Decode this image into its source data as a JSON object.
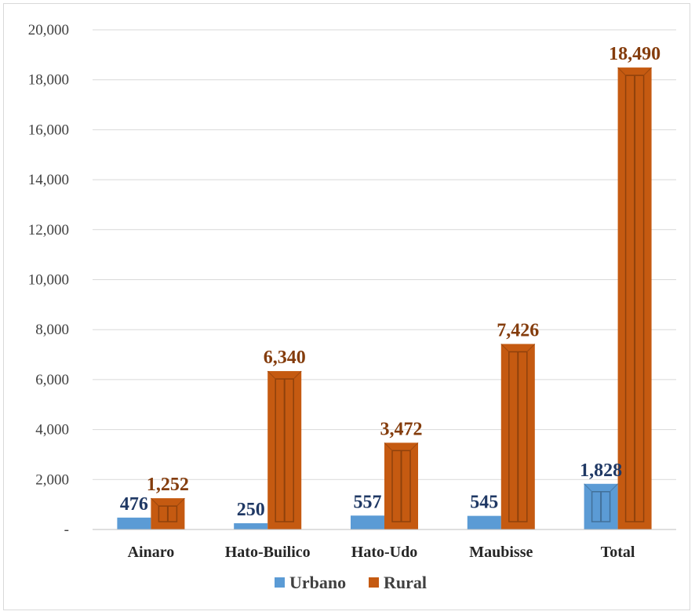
{
  "chart_data": {
    "type": "bar",
    "title": "",
    "xlabel": "",
    "ylabel": "",
    "categories": [
      "Ainaro",
      "Hato-Builico",
      "Hato-Udo",
      "Maubisse",
      "Total"
    ],
    "series": [
      {
        "name": "Urbano",
        "values": [
          476,
          250,
          557,
          545,
          1828
        ],
        "labels": [
          "476",
          "250",
          "557",
          "545",
          "1,828"
        ],
        "color": "#5b9bd5",
        "label_color": "#1f3864"
      },
      {
        "name": "Rural",
        "values": [
          1252,
          6340,
          3472,
          7426,
          18490
        ],
        "labels": [
          "1,252",
          "6,340",
          "3,472",
          "7,426",
          "18,490"
        ],
        "color": "#c55a11",
        "label_color": "#843c0c"
      }
    ],
    "ylim": [
      0,
      20000
    ],
    "yticks": [
      0,
      2000,
      4000,
      6000,
      8000,
      10000,
      12000,
      14000,
      16000,
      18000,
      20000
    ],
    "ytick_labels": [
      "-",
      "2,000",
      "4,000",
      "6,000",
      "8,000",
      "10,000",
      "12,000",
      "14,000",
      "16,000",
      "18,000",
      "20,000"
    ],
    "grid": true,
    "legend_position": "bottom"
  }
}
